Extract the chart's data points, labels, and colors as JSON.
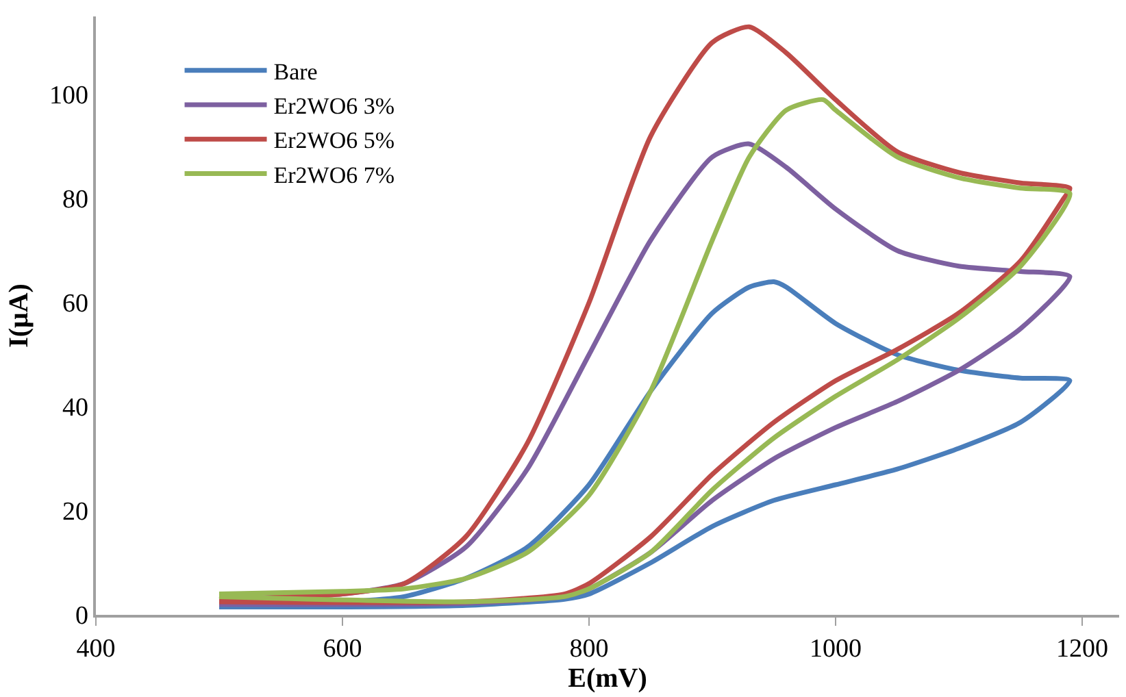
{
  "chart_data": {
    "type": "line",
    "xlabel": "E(mV)",
    "ylabel": "I(μA)",
    "xlim": [
      400,
      1230
    ],
    "xticks": [
      400,
      600,
      800,
      1000,
      1200
    ],
    "ylim": [
      0,
      115
    ],
    "yticks": [
      0,
      20,
      40,
      60,
      80,
      100
    ],
    "legend": "top left",
    "marker": "none",
    "line_style": "solid",
    "series": [
      {
        "name": "Bare",
        "color": "#4a7ebb",
        "x": [
          500,
          600,
          700,
          780,
          800,
          850,
          900,
          950,
          1000,
          1050,
          1100,
          1150,
          1190,
          1150,
          1100,
          1050,
          1000,
          960,
          950,
          930,
          900,
          850,
          800,
          750,
          700,
          650,
          600,
          500
        ],
        "values": [
          1.5,
          1.5,
          1.8,
          3,
          4,
          10,
          17,
          22,
          25,
          28,
          32,
          37,
          45,
          45.5,
          47,
          50,
          56,
          63,
          64,
          63,
          58,
          43,
          25,
          13,
          7,
          3.5,
          2.5,
          2
        ]
      },
      {
        "name": "Er2WO6 3%",
        "color": "#7d60a0",
        "x": [
          500,
          700,
          780,
          800,
          850,
          900,
          950,
          1000,
          1050,
          1100,
          1150,
          1190,
          1150,
          1100,
          1050,
          1000,
          960,
          930,
          900,
          850,
          800,
          750,
          700,
          650,
          600,
          500
        ],
        "values": [
          2,
          2.2,
          3.5,
          5,
          12,
          22,
          30,
          36,
          41,
          47,
          55,
          65,
          66,
          67,
          70,
          78,
          86,
          90.5,
          88,
          72,
          50,
          28,
          13,
          6,
          4,
          3
        ]
      },
      {
        "name": "Er2WO6 5%",
        "color": "#be4b48",
        "x": [
          500,
          700,
          780,
          800,
          850,
          900,
          950,
          1000,
          1050,
          1100,
          1150,
          1185,
          1190,
          1150,
          1100,
          1050,
          1000,
          960,
          930,
          900,
          850,
          800,
          750,
          700,
          650,
          600,
          500
        ],
        "values": [
          2.5,
          2.5,
          4,
          6,
          15,
          27,
          37,
          45,
          51,
          58,
          68,
          80,
          82,
          83,
          85,
          89,
          99,
          108,
          113,
          110,
          92,
          60,
          33,
          15,
          6,
          4,
          3
        ]
      },
      {
        "name": "Er2WO6 7%",
        "color": "#98b954",
        "x": [
          500,
          700,
          780,
          800,
          850,
          900,
          950,
          1000,
          1050,
          1100,
          1150,
          1190,
          1150,
          1100,
          1050,
          1000,
          990,
          960,
          930,
          900,
          850,
          800,
          750,
          700,
          650,
          600,
          500
        ],
        "values": [
          3.5,
          2.5,
          3.5,
          5,
          12,
          24,
          34,
          42,
          49,
          57,
          67,
          81,
          82,
          84,
          88,
          97,
          99,
          97,
          88,
          72,
          43,
          23,
          12,
          7,
          5,
          4.5,
          4
        ]
      }
    ]
  }
}
